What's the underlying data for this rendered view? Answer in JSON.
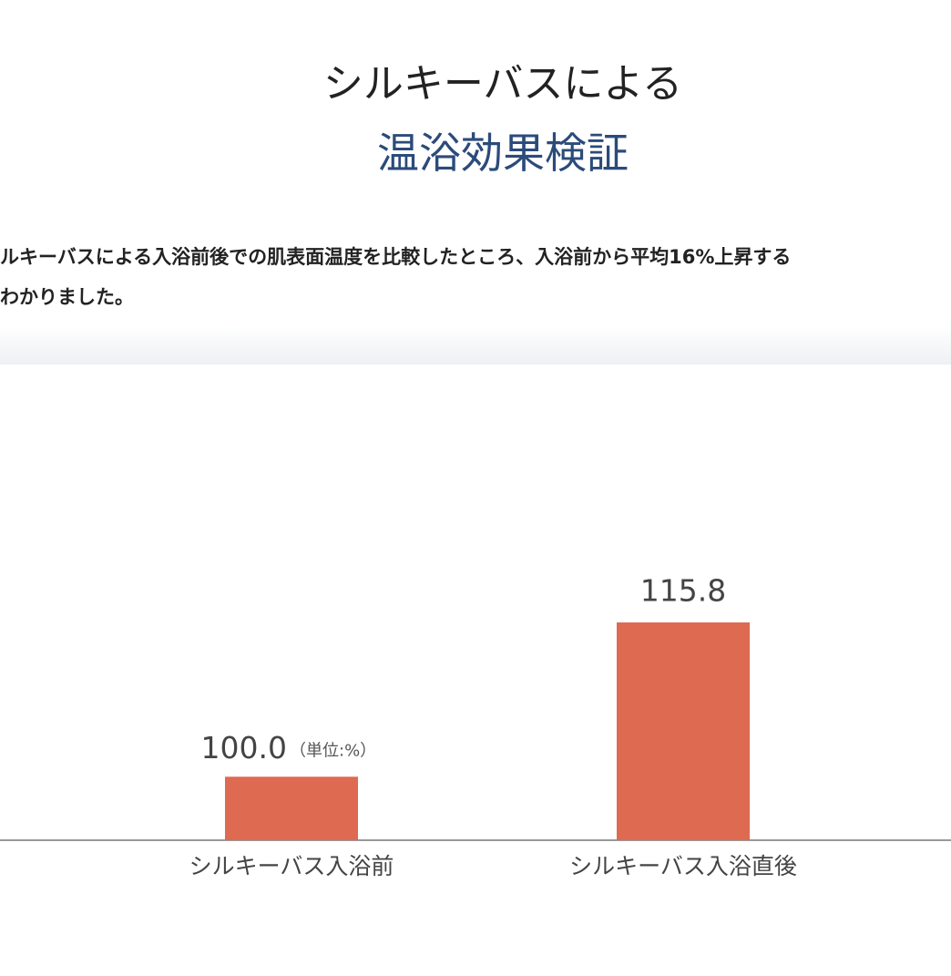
{
  "header": {
    "line1": "シルキーバスによる",
    "line2": "温浴効果検証"
  },
  "description": {
    "lines": [
      "ルキーバスによる入浴前後での肌表面温度を比較したところ、入浴前から平均16%上昇する",
      "わかりました。"
    ]
  },
  "chart_data": {
    "type": "bar",
    "categories": [
      "シルキーバス入浴前",
      "シルキーバス入浴直後"
    ],
    "values": [
      100.0,
      115.8
    ],
    "value_labels": [
      "100.0",
      "115.8"
    ],
    "unit_label": "（単位:%）",
    "color": "#dd6a51",
    "ylim": [
      93.5,
      120
    ]
  }
}
